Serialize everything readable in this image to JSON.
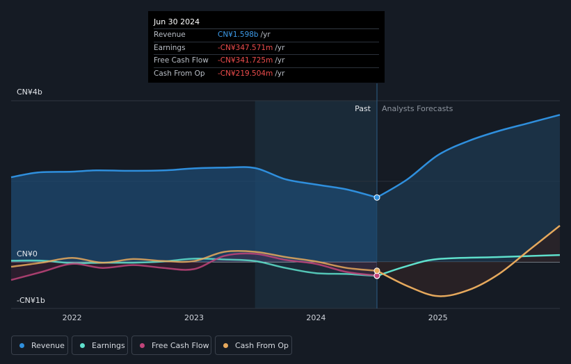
{
  "tooltip": {
    "date": "Jun 30 2024",
    "rows": [
      {
        "label": "Revenue",
        "value": "CN¥1.598b",
        "unit": "/yr",
        "color": "#3d9be9"
      },
      {
        "label": "Earnings",
        "value": "-CN¥347.571m",
        "unit": "/yr",
        "color": "#ee4d4d"
      },
      {
        "label": "Free Cash Flow",
        "value": "-CN¥341.725m",
        "unit": "/yr",
        "color": "#ee4d4d"
      },
      {
        "label": "Cash From Op",
        "value": "-CN¥219.504m",
        "unit": "/yr",
        "color": "#ee4d4d"
      }
    ]
  },
  "legend": [
    {
      "label": "Revenue",
      "color": "#2f8fdd"
    },
    {
      "label": "Earnings",
      "color": "#5fe0cc"
    },
    {
      "label": "Free Cash Flow",
      "color": "#c0447a"
    },
    {
      "label": "Cash From Op",
      "color": "#e6a95d"
    }
  ],
  "chart_data": {
    "type": "line",
    "y_unit": "CN¥ billions",
    "ylim": [
      -1,
      4
    ],
    "xlim": [
      2021.5,
      2026.0
    ],
    "y_tick_labels": [
      {
        "value": 4,
        "label": "CN¥4b"
      },
      {
        "value": 0,
        "label": "CN¥0"
      },
      {
        "value": -1,
        "label": "-CN¥1b"
      }
    ],
    "x_ticks": [
      {
        "value": 2022,
        "label": "2022"
      },
      {
        "value": 2023,
        "label": "2023"
      },
      {
        "value": 2024,
        "label": "2024"
      },
      {
        "value": 2025,
        "label": "2025"
      }
    ],
    "divider_x": 2024.5,
    "highlight_start_x": 2023.5,
    "past_label": "Past",
    "forecast_label": "Analysts Forecasts",
    "series": [
      {
        "name": "Revenue",
        "color": "#2f8fdd",
        "x": [
          2021.5,
          2021.72,
          2022.0,
          2022.2,
          2022.5,
          2022.75,
          2023.0,
          2023.25,
          2023.5,
          2023.75,
          2024.0,
          2024.25,
          2024.5
        ],
        "y": [
          2.1,
          2.22,
          2.24,
          2.27,
          2.26,
          2.27,
          2.32,
          2.34,
          2.33,
          2.05,
          1.92,
          1.8,
          1.598
        ],
        "forecast_x": [
          2024.5,
          2024.75,
          2025.0,
          2025.25,
          2025.5,
          2025.75,
          2026.0
        ],
        "forecast_y": [
          1.598,
          2.05,
          2.65,
          3.0,
          3.25,
          3.45,
          3.65
        ],
        "marker_x": 2024.5,
        "marker_y": 1.598
      },
      {
        "name": "Earnings",
        "color": "#5fe0cc",
        "x": [
          2021.5,
          2021.75,
          2022.0,
          2022.25,
          2022.5,
          2022.75,
          2023.0,
          2023.25,
          2023.5,
          2023.75,
          2024.0,
          2024.25,
          2024.5
        ],
        "y": [
          0.03,
          0.03,
          -0.03,
          -0.02,
          -0.02,
          0.01,
          0.08,
          0.06,
          0.02,
          -0.15,
          -0.28,
          -0.3,
          -0.348
        ],
        "forecast_x": [
          2024.5,
          2024.75,
          2025.0,
          2025.5,
          2026.0
        ],
        "forecast_y": [
          -0.348,
          -0.1,
          0.07,
          0.12,
          0.17
        ],
        "marker_x": 2024.5,
        "marker_y": -0.348
      },
      {
        "name": "Free Cash Flow",
        "color": "#c0447a",
        "x": [
          2021.5,
          2021.75,
          2022.0,
          2022.25,
          2022.5,
          2022.75,
          2023.0,
          2023.25,
          2023.5,
          2023.75,
          2024.0,
          2024.25,
          2024.5
        ],
        "y": [
          -0.45,
          -0.25,
          -0.05,
          -0.15,
          -0.08,
          -0.15,
          -0.18,
          0.15,
          0.2,
          0.05,
          -0.05,
          -0.25,
          -0.342
        ],
        "marker_x": 2024.5,
        "marker_y": -0.342
      },
      {
        "name": "Cash From Op",
        "color": "#e6a95d",
        "x": [
          2021.5,
          2021.75,
          2022.0,
          2022.25,
          2022.5,
          2022.75,
          2023.0,
          2023.25,
          2023.5,
          2023.75,
          2024.0,
          2024.25,
          2024.5
        ],
        "y": [
          -0.12,
          -0.02,
          0.1,
          -0.02,
          0.07,
          0.02,
          0.02,
          0.25,
          0.25,
          0.12,
          0.01,
          -0.15,
          -0.22
        ],
        "forecast_x": [
          2024.5,
          2024.75,
          2025.0,
          2025.25,
          2025.5,
          2025.75,
          2026.0
        ],
        "forecast_y": [
          -0.22,
          -0.6,
          -0.85,
          -0.7,
          -0.3,
          0.3,
          0.9
        ],
        "marker_x": 2024.5,
        "marker_y": -0.22
      }
    ]
  }
}
